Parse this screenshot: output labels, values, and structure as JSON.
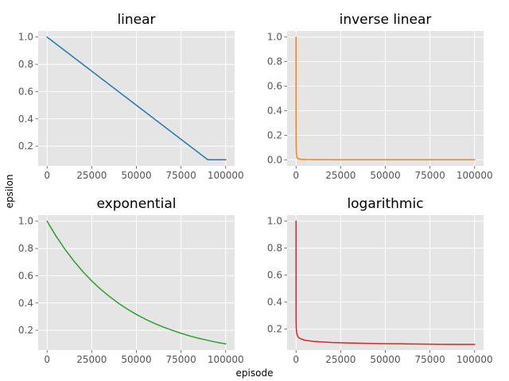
{
  "figure": {
    "ylabel": "epsilon",
    "xlabel": "episode"
  },
  "colors": {
    "panel_background": "#e5e5e5",
    "grid": "#ffffff",
    "tick_text": "#555555",
    "title_text": "#000000"
  },
  "chart_data": [
    {
      "type": "line",
      "title": "linear",
      "xlabel": "",
      "ylabel": "",
      "xlim": [
        -5000,
        105000
      ],
      "ylim": [
        0.055,
        1.045
      ],
      "xticks": [
        0,
        25000,
        50000,
        75000,
        100000
      ],
      "yticks": [
        0.2,
        0.4,
        0.6,
        0.8,
        1.0
      ],
      "xtick_labels": [
        "0",
        "25000",
        "50000",
        "75000",
        "100000"
      ],
      "ytick_labels": [
        "0.2",
        "0.4",
        "0.6",
        "0.8",
        "1.0"
      ],
      "grid": true,
      "series": [
        {
          "color": "#1f77b4",
          "x": [
            0,
            90000,
            100000
          ],
          "y": [
            1.0,
            0.1,
            0.1
          ]
        }
      ]
    },
    {
      "type": "line",
      "title": "inverse linear",
      "xlabel": "",
      "ylabel": "",
      "xlim": [
        -5000,
        105000
      ],
      "ylim": [
        -0.05,
        1.05
      ],
      "xticks": [
        0,
        25000,
        50000,
        75000,
        100000
      ],
      "yticks": [
        0.0,
        0.2,
        0.4,
        0.6,
        0.8,
        1.0
      ],
      "xtick_labels": [
        "0",
        "25000",
        "50000",
        "75000",
        "100000"
      ],
      "ytick_labels": [
        "0.0",
        "0.2",
        "0.4",
        "0.6",
        "0.8",
        "1.0"
      ],
      "grid": true,
      "series": [
        {
          "color": "#ff7f0e",
          "x": [
            0,
            10,
            20,
            50,
            100,
            200,
            500,
            1000,
            2000,
            5000,
            10000,
            25000,
            50000,
            75000,
            100000
          ],
          "y": [
            1.0,
            0.5,
            0.333,
            0.167,
            0.091,
            0.048,
            0.02,
            0.01,
            0.005,
            0.002,
            0.001,
            0.0004,
            0.0002,
            0.0001,
            0.0001
          ]
        }
      ]
    },
    {
      "type": "line",
      "title": "exponential",
      "xlabel": "",
      "ylabel": "",
      "xlim": [
        -5000,
        105000
      ],
      "ylim": [
        0.055,
        1.045
      ],
      "xticks": [
        0,
        25000,
        50000,
        75000,
        100000
      ],
      "yticks": [
        0.2,
        0.4,
        0.6,
        0.8,
        1.0
      ],
      "xtick_labels": [
        "0",
        "25000",
        "50000",
        "75000",
        "100000"
      ],
      "ytick_labels": [
        "0.2",
        "0.4",
        "0.6",
        "0.8",
        "1.0"
      ],
      "grid": true,
      "series": [
        {
          "color": "#2ca02c",
          "x": [
            0,
            5000,
            10000,
            15000,
            20000,
            25000,
            30000,
            35000,
            40000,
            45000,
            50000,
            55000,
            60000,
            65000,
            70000,
            75000,
            80000,
            85000,
            90000,
            95000,
            100000
          ],
          "y": [
            1.0,
            0.891,
            0.794,
            0.708,
            0.631,
            0.562,
            0.501,
            0.447,
            0.398,
            0.355,
            0.316,
            0.282,
            0.251,
            0.224,
            0.2,
            0.178,
            0.158,
            0.141,
            0.126,
            0.112,
            0.1
          ]
        }
      ]
    },
    {
      "type": "line",
      "title": "logarithmic",
      "xlabel": "",
      "ylabel": "",
      "xlim": [
        -5000,
        105000
      ],
      "ylim": [
        0.045,
        1.045
      ],
      "xticks": [
        0,
        25000,
        50000,
        75000,
        100000
      ],
      "yticks": [
        0.2,
        0.4,
        0.6,
        0.8,
        1.0
      ],
      "xtick_labels": [
        "0",
        "25000",
        "50000",
        "75000",
        "100000"
      ],
      "ytick_labels": [
        "0.2",
        "0.4",
        "0.6",
        "0.8",
        "1.0"
      ],
      "grid": true,
      "series": [
        {
          "color": "#d62728",
          "x": [
            0,
            5,
            20,
            50,
            100,
            200,
            500,
            1000,
            2000,
            5000,
            10000,
            20000,
            30000,
            40000,
            50000,
            60000,
            70000,
            80000,
            90000,
            100000
          ],
          "y": [
            1.0,
            0.56,
            0.329,
            0.254,
            0.217,
            0.189,
            0.161,
            0.145,
            0.132,
            0.117,
            0.109,
            0.101,
            0.097,
            0.094,
            0.092,
            0.091,
            0.089,
            0.088,
            0.087,
            0.087
          ]
        }
      ]
    }
  ]
}
